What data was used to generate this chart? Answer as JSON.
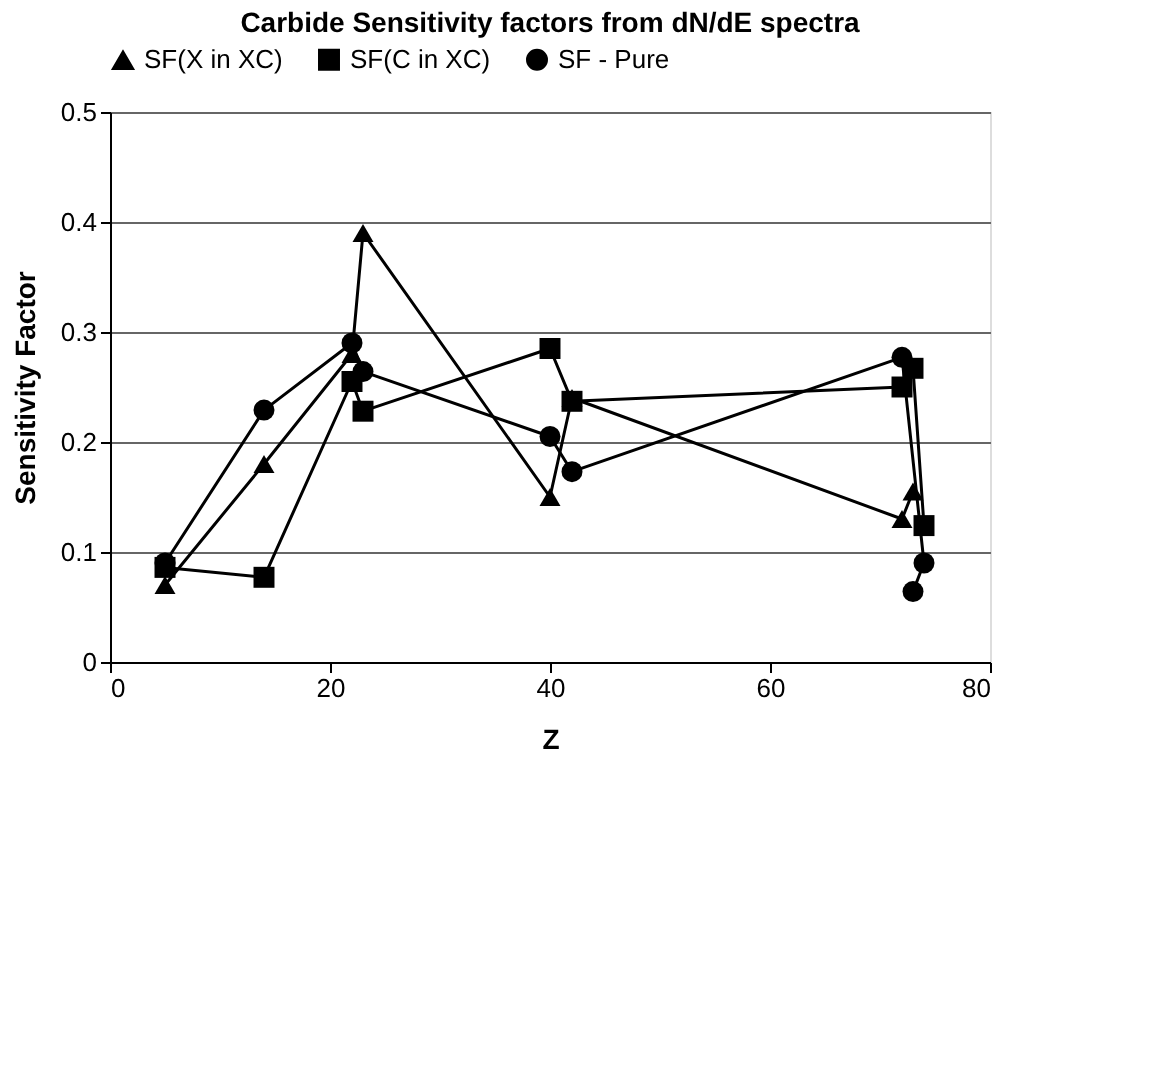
{
  "chart_data": {
    "type": "line",
    "title": "Carbide Sensitivity factors from dN/dE spectra",
    "xlabel": "Z",
    "ylabel": "Sensitivity Factor",
    "xlim": [
      0,
      80
    ],
    "xticks": [
      0,
      20,
      40,
      60,
      80
    ],
    "ylim": [
      0,
      0.5
    ],
    "yticks": [
      {
        "value": 0,
        "label": "0"
      },
      0.1,
      0.2,
      0.3,
      0.4,
      0.5
    ],
    "grid": "y",
    "legend": "top",
    "line_style": "solid",
    "series": [
      {
        "name": "SF(X in XC)",
        "color": "#000000",
        "marker": "triangle",
        "x": [
          5,
          14,
          22,
          23,
          40,
          42,
          72,
          73
        ],
        "values": [
          0.07,
          0.18,
          0.28,
          0.39,
          0.15,
          0.24,
          0.13,
          0.155
        ]
      },
      {
        "name": "SF(C in XC)",
        "color": "#000000",
        "marker": "square",
        "x": [
          5,
          14,
          22,
          23,
          40,
          42,
          72,
          73,
          74
        ],
        "values": [
          0.086,
          0.077,
          0.255,
          0.228,
          0.285,
          0.237,
          0.25,
          0.267,
          0.124
        ]
      },
      {
        "name": "SF - Pure",
        "color": "#000000",
        "marker": "circle",
        "x": [
          5,
          14,
          22,
          23,
          40,
          42,
          72,
          74,
          73
        ],
        "values": [
          0.09,
          0.229,
          0.29,
          0.264,
          0.205,
          0.173,
          0.277,
          0.09,
          0.064
        ]
      }
    ]
  }
}
